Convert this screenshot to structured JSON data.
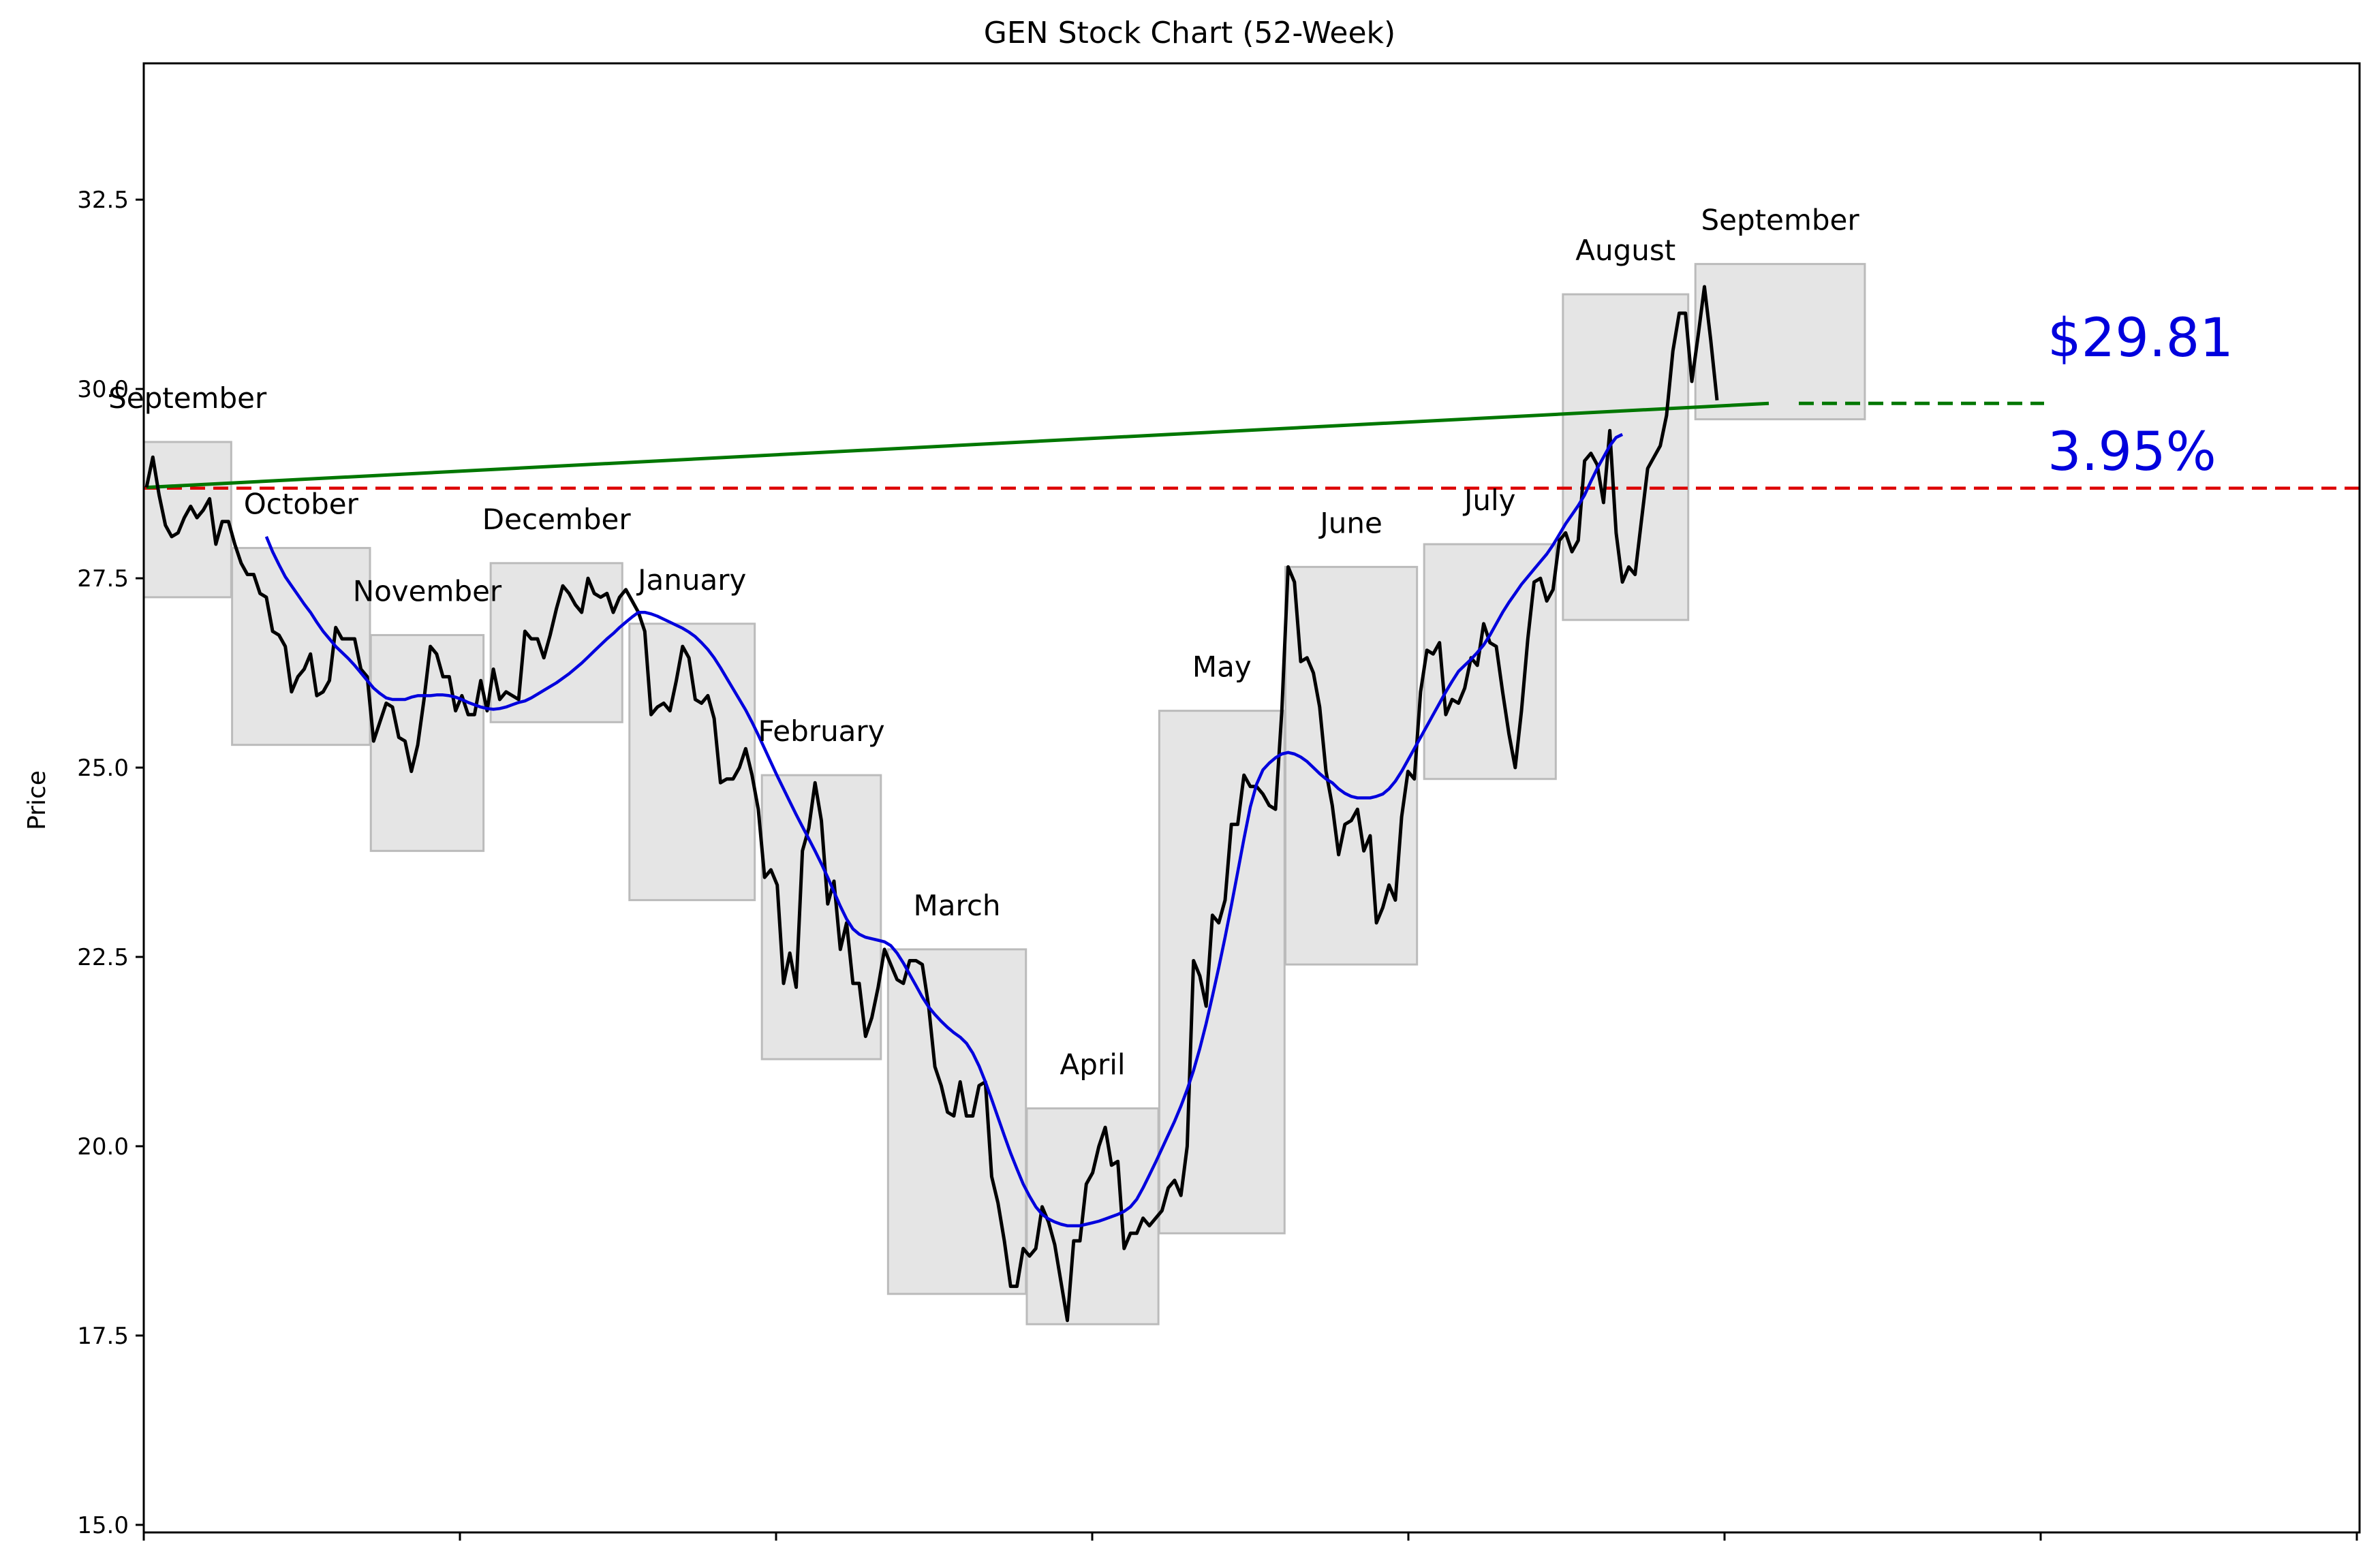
{
  "chart_data": {
    "type": "line",
    "title": "GEN Stock Chart (52-Week)",
    "ylabel": "Price",
    "xlabel": "",
    "ylim": [
      14.9,
      34.3
    ],
    "yticks": [
      15.0,
      17.5,
      20.0,
      22.5,
      25.0,
      27.5,
      30.0,
      32.5
    ],
    "grid": false,
    "price_series": {
      "name": "",
      "color": "#000000",
      "values": [
        28.7,
        29.1,
        28.6,
        28.2,
        28.05,
        28.1,
        28.3,
        28.45,
        28.3,
        28.4,
        28.55,
        27.95,
        28.25,
        28.25,
        27.95,
        27.7,
        27.55,
        27.55,
        27.3,
        27.25,
        26.8,
        26.75,
        26.6,
        26.0,
        26.2,
        26.3,
        26.5,
        25.95,
        26.0,
        26.15,
        26.85,
        26.7,
        26.7,
        26.7,
        26.3,
        26.2,
        25.35,
        25.6,
        25.85,
        25.8,
        25.4,
        25.35,
        24.95,
        25.3,
        25.9,
        26.6,
        26.5,
        26.2,
        26.2,
        25.75,
        25.95,
        25.7,
        25.7,
        26.15,
        25.75,
        26.3,
        25.9,
        26.0,
        25.95,
        25.9,
        26.8,
        26.7,
        26.7,
        26.45,
        26.75,
        27.1,
        27.4,
        27.3,
        27.15,
        27.05,
        27.5,
        27.3,
        27.25,
        27.3,
        27.05,
        27.25,
        27.35,
        27.2,
        27.05,
        26.8,
        25.7,
        25.8,
        25.85,
        25.75,
        26.15,
        26.6,
        26.45,
        25.9,
        25.85,
        25.95,
        25.65,
        24.8,
        24.85,
        24.85,
        25.0,
        25.25,
        24.9,
        24.45,
        23.55,
        23.65,
        23.45,
        22.15,
        22.55,
        22.1,
        23.9,
        24.2,
        24.8,
        24.3,
        23.2,
        23.5,
        22.6,
        22.95,
        22.15,
        22.15,
        21.45,
        21.7,
        22.1,
        22.6,
        22.4,
        22.2,
        22.15,
        22.45,
        22.45,
        22.4,
        21.85,
        21.05,
        20.8,
        20.45,
        20.4,
        20.85,
        20.4,
        20.4,
        20.8,
        20.85,
        19.6,
        19.25,
        18.75,
        18.15,
        18.15,
        18.65,
        18.55,
        18.65,
        19.2,
        19.0,
        18.7,
        18.2,
        17.7,
        18.75,
        18.75,
        19.5,
        19.65,
        20.0,
        20.25,
        19.75,
        19.8,
        18.65,
        18.85,
        18.85,
        19.05,
        18.95,
        19.05,
        19.15,
        19.45,
        19.55,
        19.35,
        20.0,
        22.45,
        22.25,
        21.85,
        23.05,
        22.95,
        23.25,
        24.25,
        24.25,
        24.9,
        24.75,
        24.75,
        24.65,
        24.5,
        24.45,
        25.75,
        27.65,
        27.45,
        26.4,
        26.45,
        26.25,
        25.8,
        24.95,
        24.5,
        23.85,
        24.25,
        24.3,
        24.45,
        23.9,
        24.1,
        22.95,
        23.15,
        23.45,
        23.25,
        24.35,
        24.95,
        24.85,
        26.0,
        26.55,
        26.5,
        26.65,
        25.7,
        25.9,
        25.85,
        26.05,
        26.45,
        26.35,
        26.9,
        26.65,
        26.6,
        26.0,
        25.45,
        25.0,
        25.75,
        26.7,
        27.45,
        27.5,
        27.2,
        27.35,
        28.0,
        28.1,
        27.85,
        28.0,
        29.05,
        29.15,
        29.0,
        28.5,
        29.45,
        28.1,
        27.45,
        27.65,
        27.55,
        28.25,
        28.95,
        29.1,
        29.25,
        29.65,
        30.5,
        31.0,
        31.0,
        30.1,
        30.7,
        31.35,
        30.65,
        29.85
      ]
    },
    "moving_average": {
      "name": "",
      "color": "#0000dd",
      "start_index": 19,
      "values": [
        28.05,
        27.85,
        27.68,
        27.52,
        27.4,
        27.28,
        27.16,
        27.05,
        26.92,
        26.8,
        26.7,
        26.6,
        26.52,
        26.44,
        26.35,
        26.25,
        26.15,
        26.05,
        25.98,
        25.92,
        25.9,
        25.9,
        25.9,
        25.93,
        25.95,
        25.95,
        25.95,
        25.96,
        25.96,
        25.95,
        25.93,
        25.9,
        25.86,
        25.83,
        25.8,
        25.78,
        25.77,
        25.78,
        25.8,
        25.83,
        25.86,
        25.88,
        25.92,
        25.97,
        26.02,
        26.07,
        26.12,
        26.18,
        26.24,
        26.31,
        26.38,
        26.46,
        26.54,
        26.62,
        26.7,
        26.77,
        26.85,
        26.92,
        26.99,
        27.05,
        27.05,
        27.03,
        27.0,
        26.96,
        26.92,
        26.88,
        26.84,
        26.79,
        26.73,
        26.65,
        26.56,
        26.45,
        26.32,
        26.18,
        26.04,
        25.9,
        25.76,
        25.6,
        25.43,
        25.25,
        25.07,
        24.89,
        24.72,
        24.55,
        24.38,
        24.22,
        24.06,
        23.9,
        23.73,
        23.55,
        23.36,
        23.17,
        23.0,
        22.87,
        22.8,
        22.76,
        22.74,
        22.72,
        22.7,
        22.65,
        22.55,
        22.42,
        22.27,
        22.12,
        21.97,
        21.84,
        21.74,
        21.65,
        21.57,
        21.5,
        21.44,
        21.36,
        21.23,
        21.06,
        20.85,
        20.62,
        20.38,
        20.14,
        19.91,
        19.7,
        19.5,
        19.34,
        19.2,
        19.1,
        19.04,
        19.0,
        18.97,
        18.95,
        18.95,
        18.95,
        18.97,
        18.99,
        19.01,
        19.04,
        19.07,
        19.1,
        19.14,
        19.2,
        19.3,
        19.45,
        19.62,
        19.79,
        19.97,
        20.15,
        20.33,
        20.53,
        20.75,
        21.0,
        21.29,
        21.62,
        21.98,
        22.36,
        22.76,
        23.18,
        23.62,
        24.06,
        24.48,
        24.78,
        24.97,
        25.06,
        25.13,
        25.18,
        25.2,
        25.18,
        25.14,
        25.08,
        25.0,
        24.92,
        24.85,
        24.8,
        24.72,
        24.66,
        24.62,
        24.6,
        24.6,
        24.6,
        24.62,
        24.65,
        24.72,
        24.82,
        24.95,
        25.1,
        25.25,
        25.4,
        25.55,
        25.7,
        25.85,
        26.0,
        26.14,
        26.27,
        26.35,
        26.43,
        26.52,
        26.62,
        26.75,
        26.9,
        27.05,
        27.18,
        27.3,
        27.42,
        27.52,
        27.62,
        27.72,
        27.82,
        27.94,
        28.08,
        28.22,
        28.34,
        28.46,
        28.6,
        28.78,
        28.95,
        29.1,
        29.25,
        29.36,
        29.4
      ]
    },
    "baseline": {
      "value": 28.69,
      "color": "#dd0000",
      "style": "dashed"
    },
    "trendline": {
      "start_value": 28.7,
      "end_value": 29.81,
      "color": "#007700",
      "extension_style": "dashed"
    },
    "month_boxes": [
      {
        "label": "September",
        "start": 0,
        "end": 13,
        "low": 27.25,
        "high": 29.3
      },
      {
        "label": "October",
        "start": 14,
        "end": 35,
        "low": 25.3,
        "high": 27.9
      },
      {
        "label": "November",
        "start": 36,
        "end": 53,
        "low": 23.9,
        "high": 26.75
      },
      {
        "label": "December",
        "start": 55,
        "end": 75,
        "low": 25.6,
        "high": 27.7
      },
      {
        "label": "January",
        "start": 77,
        "end": 96,
        "low": 23.25,
        "high": 26.9
      },
      {
        "label": "February",
        "start": 98,
        "end": 116,
        "low": 21.15,
        "high": 24.9
      },
      {
        "label": "March",
        "start": 118,
        "end": 139,
        "low": 18.05,
        "high": 22.6
      },
      {
        "label": "April",
        "start": 140,
        "end": 160,
        "low": 17.65,
        "high": 20.5
      },
      {
        "label": "May",
        "start": 161,
        "end": 180,
        "low": 18.85,
        "high": 25.75
      },
      {
        "label": "June",
        "start": 181,
        "end": 201,
        "low": 22.4,
        "high": 27.65
      },
      {
        "label": "July",
        "start": 203,
        "end": 223,
        "low": 24.85,
        "high": 27.95
      },
      {
        "label": "August",
        "start": 225,
        "end": 244,
        "low": 26.95,
        "high": 31.25
      },
      {
        "label": "September",
        "start": 246,
        "end": 272,
        "low": 29.6,
        "high": 31.65
      }
    ],
    "annotations": {
      "price_text": "$29.81",
      "change_text": "3.95%",
      "color": "#0000dd"
    }
  }
}
